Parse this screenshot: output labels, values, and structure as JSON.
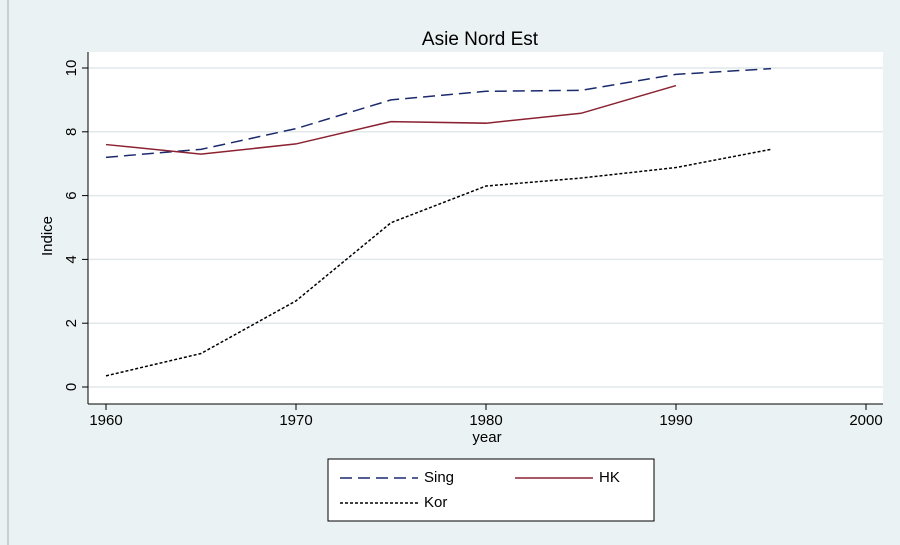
{
  "chart_data": {
    "type": "line",
    "title": "Asie Nord Est",
    "x_label": "year",
    "y_label": "Indice",
    "x": [
      1960,
      1965,
      1970,
      1975,
      1980,
      1985,
      1990,
      1995
    ],
    "series": [
      {
        "name": "Sing",
        "color": "#1a2a6c",
        "dash": "dashed",
        "values": [
          7.2,
          7.45,
          8.1,
          9.0,
          9.27,
          9.3,
          9.8,
          9.98
        ]
      },
      {
        "name": "HK",
        "color": "#8b2232",
        "dash": "solid",
        "values": [
          7.6,
          7.3,
          7.62,
          8.32,
          8.27,
          8.58,
          9.45,
          null
        ]
      },
      {
        "name": "Kor",
        "color": "#000000",
        "dash": "dotted",
        "values": [
          0.35,
          1.05,
          2.7,
          5.15,
          6.3,
          6.55,
          6.88,
          7.45
        ]
      }
    ],
    "xlim": [
      1960,
      2000
    ],
    "xticks": [
      1960,
      1970,
      1980,
      1990,
      2000
    ],
    "ylim": [
      0,
      10
    ],
    "yticks": [
      0,
      2,
      4,
      6,
      8,
      10
    ],
    "grid": true,
    "legend": "bottom"
  }
}
